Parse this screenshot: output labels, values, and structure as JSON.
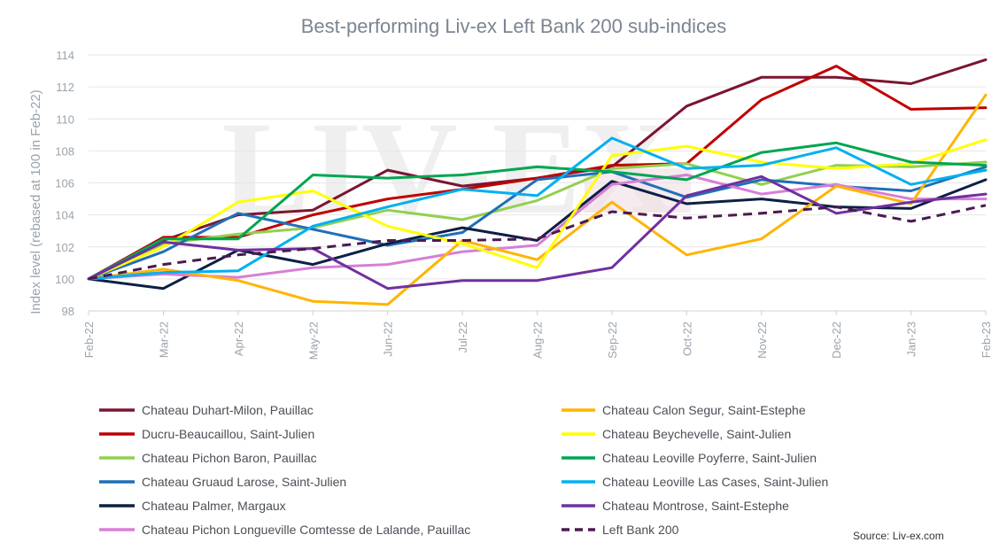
{
  "chart_data": {
    "type": "line",
    "title": "Best-performing Liv-ex Left Bank 200 sub-indices",
    "ylabel": "Index level (rebased at 100 in Feb-22)",
    "xlabel": "",
    "ylim": [
      98,
      114
    ],
    "yticks": [
      98,
      100,
      102,
      104,
      106,
      108,
      110,
      112,
      114
    ],
    "categories": [
      "Feb-22",
      "Mar-22",
      "Apr-22",
      "May-22",
      "Jun-22",
      "Jul-22",
      "Aug-22",
      "Sep-22",
      "Oct-22",
      "Nov-22",
      "Dec-22",
      "Jan-23",
      "Feb-23"
    ],
    "grid": true,
    "watermark": "LIV-EX",
    "source": "Source: Liv-ex.com",
    "series": [
      {
        "name": "Chateau Duhart-Milon, Pauillac",
        "color": "#7b1530",
        "dash": false,
        "values": [
          100,
          102.4,
          104.0,
          104.3,
          106.8,
          105.8,
          106.3,
          107.0,
          110.8,
          112.6,
          112.6,
          112.2,
          113.7
        ]
      },
      {
        "name": "Ducru-Beaucaillou, Saint-Julien",
        "color": "#c00000",
        "dash": false,
        "values": [
          100,
          102.6,
          102.6,
          104.0,
          105.0,
          105.6,
          106.3,
          107.1,
          107.2,
          111.2,
          113.3,
          110.6,
          110.7
        ]
      },
      {
        "name": "Chateau Pichon Baron, Pauillac",
        "color": "#92d050",
        "dash": false,
        "values": [
          100,
          102.2,
          102.8,
          103.2,
          104.3,
          103.7,
          104.9,
          106.9,
          107.2,
          105.9,
          107.1,
          107.0,
          107.3
        ]
      },
      {
        "name": "Chateau Gruaud Larose, Saint-Julien",
        "color": "#1f6fb8",
        "dash": false,
        "values": [
          100,
          101.7,
          104.1,
          103.1,
          102.1,
          102.9,
          106.2,
          106.7,
          105.1,
          106.2,
          105.8,
          105.5,
          107.0
        ]
      },
      {
        "name": "Chateau Palmer, Margaux",
        "color": "#0d1f44",
        "dash": false,
        "values": [
          100,
          99.4,
          101.8,
          100.9,
          102.2,
          103.2,
          102.4,
          106.1,
          104.7,
          105.0,
          104.5,
          104.4,
          106.2
        ]
      },
      {
        "name": "Chateau Pichon Longueville Comtesse de Lalande, Pauillac",
        "color": "#d77fd6",
        "dash": false,
        "values": [
          100,
          100.3,
          100.1,
          100.7,
          100.9,
          101.7,
          102.1,
          105.9,
          106.5,
          105.3,
          105.9,
          105.0,
          105.0
        ]
      },
      {
        "name": "Chateau Calon Segur, Saint-Estephe",
        "color": "#ffb400",
        "dash": false,
        "values": [
          100,
          100.6,
          99.9,
          98.6,
          98.4,
          102.4,
          101.2,
          104.8,
          101.5,
          102.5,
          105.8,
          104.7,
          111.5
        ]
      },
      {
        "name": "Chateau Beychevelle, Saint-Julien",
        "color": "#ffff00",
        "dash": false,
        "values": [
          100,
          102.0,
          104.8,
          105.5,
          103.3,
          102.2,
          100.7,
          107.7,
          108.3,
          107.3,
          106.9,
          107.2,
          108.7
        ]
      },
      {
        "name": "Chateau Leoville Poyferre, Saint-Julien",
        "color": "#00a651",
        "dash": false,
        "values": [
          100,
          102.5,
          102.5,
          106.5,
          106.3,
          106.5,
          107.0,
          106.7,
          106.2,
          107.9,
          108.5,
          107.3,
          107.1
        ]
      },
      {
        "name": "Chateau Leoville Las Cases, Saint-Julien",
        "color": "#00b0f0",
        "dash": false,
        "values": [
          100,
          100.4,
          100.5,
          103.3,
          104.5,
          105.6,
          105.2,
          108.8,
          106.9,
          107.1,
          108.2,
          105.9,
          106.8
        ]
      },
      {
        "name": "Chateau Montrose, Saint-Estephe",
        "color": "#7030a0",
        "dash": false,
        "values": [
          100,
          102.3,
          101.8,
          101.9,
          99.4,
          99.9,
          99.9,
          100.7,
          105.2,
          106.4,
          104.1,
          104.8,
          105.3
        ]
      },
      {
        "name": "Left Bank 200",
        "color": "#4a1a4e",
        "dash": true,
        "values": [
          100,
          100.9,
          101.5,
          101.9,
          102.4,
          102.4,
          102.5,
          104.2,
          103.8,
          104.1,
          104.5,
          103.6,
          104.6
        ]
      }
    ]
  }
}
